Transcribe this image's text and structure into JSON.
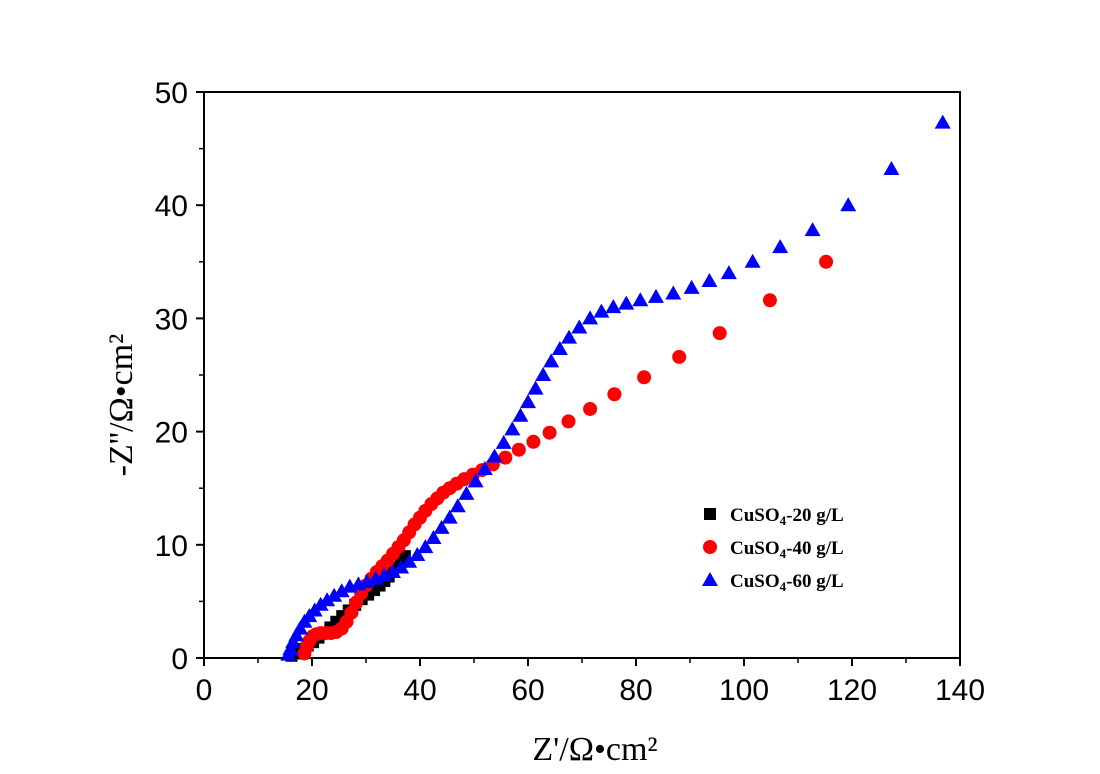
{
  "chart_data": {
    "type": "scatter",
    "xlabel": "Z'/Ω•cm²",
    "ylabel": "-Z''/Ω•cm²",
    "xlim": [
      0,
      140
    ],
    "ylim": [
      0,
      50
    ],
    "xticks": [
      0,
      20,
      40,
      60,
      80,
      100,
      120,
      140
    ],
    "yticks": [
      0,
      10,
      20,
      30,
      40,
      50
    ],
    "grid": false,
    "legend_position": "lower-right",
    "series": [
      {
        "name": "CuSO4-20 g/L",
        "legend_base": "CuSO",
        "legend_sub": "4",
        "legend_suffix": "-20 g/L",
        "marker": "square",
        "color": "#000000",
        "x": [
          16.2,
          16.8,
          17.5,
          18.3,
          19.2,
          20.2,
          21.2,
          22.3,
          23.4,
          24.5,
          25.6,
          26.8,
          28.0,
          29.2,
          30.4,
          31.5,
          32.5,
          33.4,
          34.2,
          35.0,
          35.8,
          36.5,
          37.2
        ],
        "y": [
          0.2,
          0.4,
          0.6,
          0.8,
          1.1,
          1.4,
          1.8,
          2.2,
          2.7,
          3.2,
          3.7,
          4.2,
          4.7,
          5.2,
          5.6,
          6.0,
          6.4,
          6.8,
          7.2,
          7.6,
          8.0,
          8.5,
          9.0
        ]
      },
      {
        "name": "CuSO4-40 g/L",
        "legend_base": "CuSO",
        "legend_sub": "4",
        "legend_suffix": "-40 g/L",
        "marker": "circle",
        "color": "#ff0000",
        "x": [
          18.6,
          19.0,
          19.5,
          20.1,
          20.8,
          21.6,
          22.5,
          23.5,
          24.5,
          25.5,
          26.4,
          27.3,
          28.2,
          29.1,
          30.0,
          31.0,
          32.0,
          33.0,
          34.0,
          35.0,
          36.0,
          37.0,
          38.0,
          39.0,
          40.0,
          41.0,
          42.1,
          43.2,
          44.3,
          45.5,
          46.8,
          48.2,
          49.8,
          51.5,
          53.5,
          55.8,
          58.3,
          61.0,
          64.0,
          67.5,
          71.5,
          76.0,
          81.5,
          88.0,
          95.5,
          104.8,
          115.2
        ],
        "y": [
          0.4,
          1.0,
          1.5,
          1.9,
          2.1,
          2.2,
          2.2,
          2.2,
          2.3,
          2.6,
          3.2,
          4.0,
          4.9,
          5.7,
          6.4,
          7.0,
          7.6,
          8.1,
          8.6,
          9.2,
          9.8,
          10.4,
          11.1,
          11.8,
          12.4,
          13.0,
          13.6,
          14.1,
          14.6,
          15.0,
          15.4,
          15.8,
          16.2,
          16.6,
          17.1,
          17.7,
          18.4,
          19.1,
          19.9,
          20.9,
          22.0,
          23.3,
          24.8,
          26.6,
          28.7,
          31.6,
          35.0
        ]
      },
      {
        "name": "CuSO4-60 g/L",
        "legend_base": "CuSO",
        "legend_sub": "4",
        "legend_suffix": "-60 g/L",
        "marker": "triangle",
        "color": "#0000ff",
        "x": [
          15.6,
          16.0,
          16.5,
          17.1,
          17.8,
          18.6,
          19.5,
          20.5,
          21.6,
          22.8,
          24.1,
          25.5,
          27.0,
          28.6,
          30.2,
          31.8,
          33.4,
          35.0,
          36.5,
          38.0,
          39.5,
          41.0,
          42.5,
          44.0,
          45.5,
          47.0,
          48.6,
          50.3,
          52.0,
          53.8,
          55.5,
          57.1,
          58.6,
          60.0,
          61.4,
          62.8,
          64.3,
          65.9,
          67.6,
          69.5,
          71.5,
          73.6,
          75.8,
          78.2,
          80.8,
          83.7,
          86.9,
          90.3,
          93.6,
          97.2,
          101.6,
          106.7,
          112.7,
          119.3,
          127.3,
          136.8
        ],
        "y": [
          0.3,
          0.8,
          1.4,
          2.0,
          2.6,
          3.2,
          3.7,
          4.2,
          4.7,
          5.1,
          5.5,
          5.9,
          6.3,
          6.5,
          6.7,
          7.0,
          7.3,
          7.6,
          8.0,
          8.5,
          9.1,
          9.8,
          10.6,
          11.5,
          12.4,
          13.4,
          14.5,
          15.6,
          16.7,
          17.8,
          19.0,
          20.2,
          21.4,
          22.6,
          23.8,
          25.0,
          26.2,
          27.3,
          28.3,
          29.2,
          30.0,
          30.6,
          31.0,
          31.3,
          31.6,
          31.9,
          32.2,
          32.7,
          33.3,
          34.0,
          35.0,
          36.3,
          37.8,
          40.0,
          43.2,
          47.3
        ]
      }
    ]
  }
}
